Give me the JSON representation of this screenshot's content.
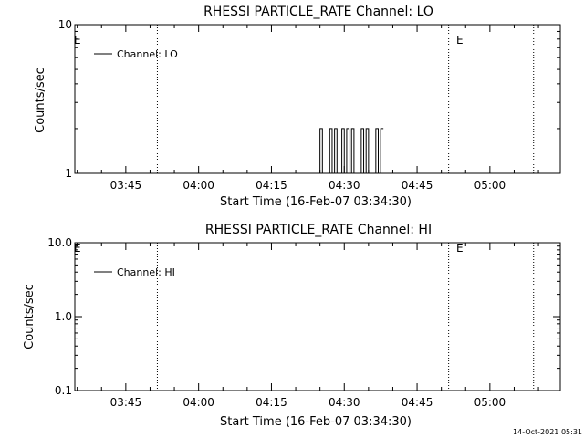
{
  "timestamp": "14-Oct-2021 05:31",
  "chart_data": [
    {
      "type": "line",
      "title": "RHESSI PARTICLE_RATE Channel: LO",
      "xlabel": "Start Time (16-Feb-07 03:34:30)",
      "ylabel": "Counts/sec",
      "yscale": "log",
      "xlim": [
        "03:34:30",
        "05:14:30"
      ],
      "ylim": [
        1,
        10
      ],
      "xticks": [
        "03:45",
        "04:00",
        "04:15",
        "04:30",
        "04:45",
        "05:00"
      ],
      "yticks": [
        "1",
        "10"
      ],
      "legend": {
        "placement": "top-left",
        "label": "Channel: LO"
      },
      "events": [
        {
          "label": "E",
          "time": "03:34:30"
        },
        {
          "label": "E",
          "time": "04:51:30"
        }
      ],
      "vlines": [
        "03:51:30",
        "04:51:30",
        "05:09:00"
      ],
      "series": [
        {
          "x": [
            "04:24:30",
            "04:25:00",
            "04:25:30",
            "04:26:00",
            "04:26:30",
            "04:27:00",
            "04:27:30",
            "04:28:00",
            "04:28:30",
            "04:29:00",
            "04:29:30",
            "04:30:00",
            "04:30:30",
            "04:31:00",
            "04:31:30",
            "04:32:00",
            "04:32:30",
            "04:33:00",
            "04:33:30",
            "04:34:00",
            "04:34:30",
            "04:35:00",
            "04:35:30",
            "04:36:00",
            "04:36:30",
            "04:37:00",
            "04:37:30"
          ],
          "y": [
            1,
            2,
            1,
            1,
            1,
            2,
            1,
            2,
            1,
            1,
            2,
            1,
            2,
            1,
            2,
            1,
            1,
            1,
            2,
            1,
            2,
            1,
            1,
            1,
            2,
            1,
            2
          ]
        }
      ]
    },
    {
      "type": "line",
      "title": "RHESSI PARTICLE_RATE Channel: HI",
      "xlabel": "Start Time (16-Feb-07 03:34:30)",
      "ylabel": "Counts/sec",
      "yscale": "log",
      "xlim": [
        "03:34:30",
        "05:14:30"
      ],
      "ylim": [
        0.1,
        10
      ],
      "xticks": [
        "03:45",
        "04:00",
        "04:15",
        "04:30",
        "04:45",
        "05:00"
      ],
      "yticks": [
        "0.1",
        "1.0",
        "10.0"
      ],
      "legend": {
        "placement": "top-left",
        "label": "Channel: HI"
      },
      "events": [
        {
          "label": "E",
          "time": "03:34:30"
        },
        {
          "label": "E",
          "time": "04:51:30"
        }
      ],
      "vlines": [
        "03:51:30",
        "04:51:30",
        "05:09:00"
      ],
      "series": [
        {
          "x": [],
          "y": []
        }
      ]
    }
  ]
}
